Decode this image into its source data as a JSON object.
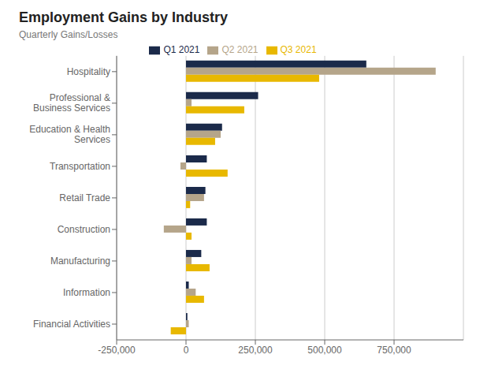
{
  "chart_data": {
    "type": "bar",
    "orientation": "horizontal",
    "title": "Employment Gains by Industry",
    "subtitle": "Quarterly Gains/Losses",
    "categories": [
      "Hospitality",
      "Professional &\nBusiness Services",
      "Education & Health\nServices",
      "Transportation",
      "Retail Trade",
      "Construction",
      "Manufacturing",
      "Information",
      "Financial Activities"
    ],
    "series": [
      {
        "name": "Q1 2021",
        "color": "#1B2A4A",
        "values": [
          650000,
          260000,
          130000,
          75000,
          70000,
          75000,
          55000,
          10000,
          5000
        ]
      },
      {
        "name": "Q2 2021",
        "color": "#B5A58A",
        "values": [
          900000,
          20000,
          125000,
          -20000,
          65000,
          -80000,
          20000,
          35000,
          10000
        ]
      },
      {
        "name": "Q3 2021",
        "color": "#E8B800",
        "values": [
          480000,
          210000,
          105000,
          150000,
          15000,
          20000,
          85000,
          65000,
          -55000
        ]
      }
    ],
    "xlim": [
      -250000,
      1000000
    ],
    "xticks": [
      {
        "value": -250000,
        "label": "-250,000"
      },
      0,
      {
        "value": 250000,
        "label": "250,000"
      },
      {
        "value": 500000,
        "label": "500,000"
      },
      {
        "value": 750000,
        "label": "750,000"
      }
    ],
    "grid": true,
    "legend": "top"
  }
}
